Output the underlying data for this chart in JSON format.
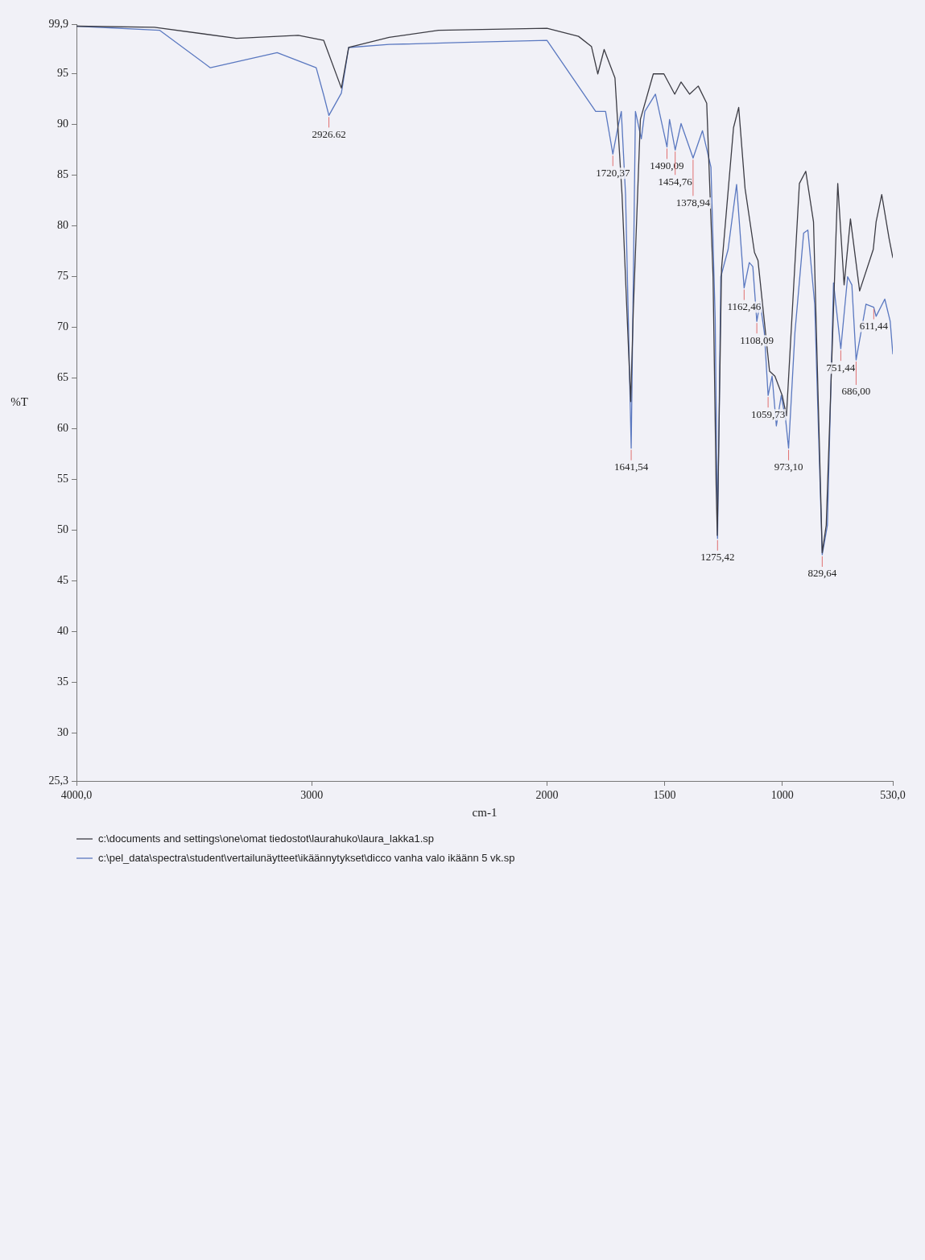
{
  "chart_data": {
    "type": "line",
    "xlabel": "cm-1",
    "ylabel": "%T",
    "xlim": [
      4000,
      530
    ],
    "xticks": [
      {
        "value": 4000,
        "label": "4000,0"
      },
      3000,
      2000,
      1500,
      1000,
      {
        "value": 530,
        "label": "530,0"
      }
    ],
    "ylim": [
      25.3,
      99.9
    ],
    "yticks": [
      {
        "value": 25.3,
        "label": "25,3"
      },
      30,
      35,
      40,
      45,
      50,
      55,
      60,
      65,
      70,
      75,
      80,
      85,
      90,
      95,
      {
        "value": 99.9,
        "label": "99,9"
      }
    ],
    "legend": "bottom left",
    "series": [
      {
        "name": "c:\\documents and settings\\one\\omat tiedostot\\laurahuko\\laura_lakka1.sp",
        "color": "#3c3c44",
        "x": [
          4000,
          3669,
          3320,
          3057,
          2949,
          2874,
          2843,
          2671,
          2461,
          2000,
          1866,
          1811,
          1784,
          1757,
          1711,
          1681,
          1644,
          1633,
          1603,
          1548,
          1503,
          1457,
          1430,
          1394,
          1357,
          1321,
          1294,
          1281,
          1276,
          1258,
          1207,
          1185,
          1158,
          1118,
          1103,
          1054,
          1031,
          1000,
          982,
          927,
          900,
          867,
          830,
          813,
          764,
          737,
          710,
          671,
          613,
          601,
          577,
          546,
          530
        ],
        "values": [
          99.7,
          99.6,
          98.5,
          98.8,
          98.3,
          93.6,
          97.6,
          98.6,
          99.3,
          99.5,
          98.7,
          97.7,
          95.0,
          97.4,
          94.6,
          83.1,
          62.7,
          71.7,
          90.5,
          95.0,
          95.0,
          93.0,
          94.2,
          93.0,
          93.8,
          92.1,
          75.0,
          54.5,
          49.5,
          75.8,
          89.7,
          91.7,
          83.7,
          77.4,
          76.6,
          65.7,
          65.2,
          63.3,
          61.3,
          84.2,
          85.4,
          80.4,
          47.8,
          50.5,
          84.2,
          74.2,
          80.7,
          73.6,
          77.7,
          80.4,
          83.1,
          78.8,
          76.9
        ]
      },
      {
        "name": "c:\\pel_data\\spectra\\student\\vertailunäytteet\\ikäännytykset\\dicco vanha valo ikäänn 5 vk.sp",
        "color": "#5a78c0",
        "x": [
          4000,
          3647,
          3431,
          3147,
          2981,
          2949,
          2927,
          2874,
          2843,
          2671,
          2353,
          2000,
          1793,
          1751,
          1720,
          1699,
          1684,
          1666,
          1642,
          1624,
          1599,
          1584,
          1539,
          1490,
          1479,
          1455,
          1430,
          1379,
          1339,
          1303,
          1285,
          1275,
          1272,
          1261,
          1230,
          1194,
          1162,
          1140,
          1125,
          1108,
          1094,
          1076,
          1060,
          1043,
          1025,
          1004,
          985,
          973,
          946,
          909,
          891,
          862,
          830,
          808,
          782,
          751,
          722,
          704,
          686,
          644,
          611,
          601,
          564,
          541,
          530
        ],
        "values": [
          99.7,
          99.3,
          95.6,
          97.1,
          95.6,
          92.9,
          90.9,
          93.1,
          97.6,
          97.9,
          98.1,
          98.3,
          91.3,
          91.3,
          87.1,
          89.7,
          91.3,
          83.1,
          58.1,
          91.3,
          88.6,
          91.3,
          93.0,
          87.8,
          90.5,
          87.5,
          90.1,
          86.7,
          89.4,
          85.8,
          70.9,
          49.2,
          54.5,
          75.0,
          77.7,
          84.1,
          73.9,
          76.4,
          76.0,
          70.6,
          72.5,
          69.5,
          63.3,
          65.2,
          60.3,
          63.3,
          60.8,
          58.1,
          69.5,
          79.3,
          79.6,
          72.3,
          47.6,
          50.5,
          74.4,
          67.9,
          75.0,
          74.2,
          66.8,
          72.3,
          72.0,
          71.1,
          72.8,
          70.6,
          67.4
        ]
      }
    ],
    "annotations": [
      {
        "text": "2926.62",
        "x": 2927,
        "y": 90.9
      },
      {
        "text": "1720,37",
        "x": 1720,
        "y": 87.1
      },
      {
        "text": "1641,54",
        "x": 1642,
        "y": 58.1
      },
      {
        "text": "1490,09",
        "x": 1490,
        "y": 87.8
      },
      {
        "text": "1454,76",
        "x": 1455,
        "y": 87.5
      },
      {
        "text": "1378,94",
        "x": 1379,
        "y": 86.7
      },
      {
        "text": "1275,42",
        "x": 1275,
        "y": 49.2
      },
      {
        "text": "1162,46",
        "x": 1162,
        "y": 73.9
      },
      {
        "text": "1108,09",
        "x": 1108,
        "y": 70.6
      },
      {
        "text": "1059,73",
        "x": 1060,
        "y": 63.3
      },
      {
        "text": "973,10",
        "x": 973,
        "y": 58.1
      },
      {
        "text": "829,64",
        "x": 830,
        "y": 47.6
      },
      {
        "text": "751,44",
        "x": 751,
        "y": 67.9
      },
      {
        "text": "686,00",
        "x": 686,
        "y": 66.8
      },
      {
        "text": "611,44",
        "x": 611,
        "y": 72.0
      }
    ]
  }
}
